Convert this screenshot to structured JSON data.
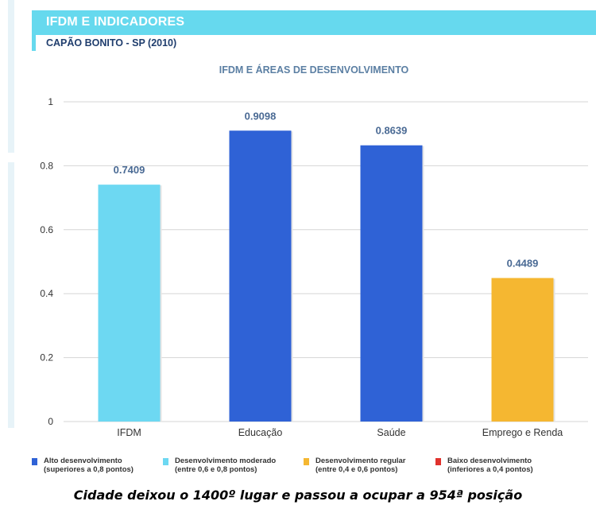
{
  "header": {
    "title": "IFDM E INDICADORES",
    "subtitle": "CAPÃO BONITO - SP (2010)"
  },
  "chart_data": {
    "type": "bar",
    "title": "IFDM E ÁREAS DE DESENVOLVIMENTO",
    "xlabel": "",
    "ylabel": "",
    "ylim": [
      0,
      1
    ],
    "yticks": [
      "0",
      "0.2",
      "0.4",
      "0.6",
      "0.8",
      "1"
    ],
    "grid": true,
    "categories": [
      "IFDM",
      "Educação",
      "Saúde",
      "Emprego e Renda"
    ],
    "values": [
      0.7409,
      0.9098,
      0.8639,
      0.4489
    ],
    "value_labels": [
      "0.7409",
      "0.9098",
      "0.8639",
      "0.4489"
    ],
    "bar_colors": [
      "#6dd8f2",
      "#2f62d6",
      "#2f62d6",
      "#f5b731"
    ]
  },
  "legend": [
    {
      "label": "Alto desenvolvimento",
      "detail": "(superiores a 0,8 pontos)",
      "color": "#2f62d6"
    },
    {
      "label": "Desenvolvimento moderado",
      "detail": "(entre 0,6 e 0,8 pontos)",
      "color": "#6dd8f2"
    },
    {
      "label": "Desenvolvimento regular",
      "detail": "(entre 0,4 e 0,6 pontos)",
      "color": "#f5b731"
    },
    {
      "label": "Baixo desenvolvimento",
      "detail": "(inferiores a 0,4 pontos)",
      "color": "#e0322d"
    }
  ],
  "caption": "Cidade deixou o 1400º lugar e passou a ocupar a 954ª posição"
}
